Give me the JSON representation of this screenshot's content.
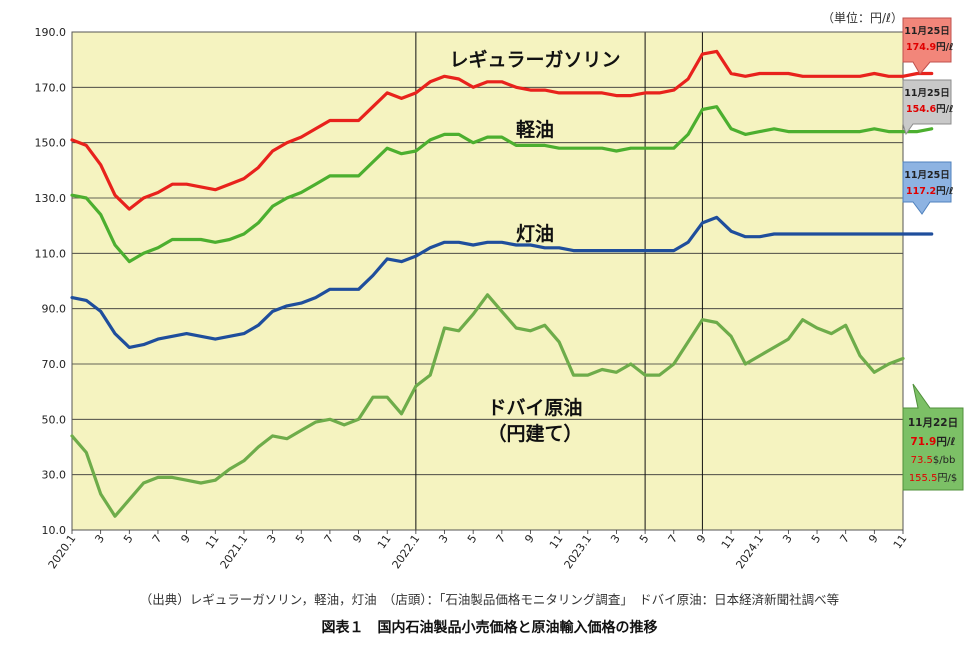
{
  "chart_data": {
    "type": "line",
    "unit_label": "（単位：円/ℓ）",
    "ylim": [
      10,
      190
    ],
    "yticks": [
      "10.0",
      "30.0",
      "50.0",
      "70.0",
      "90.0",
      "110.0",
      "130.0",
      "150.0",
      "170.0",
      "190.0"
    ],
    "xticks": [
      "2020.1",
      "3",
      "5",
      "7",
      "9",
      "11",
      "2021.1",
      "3",
      "5",
      "7",
      "9",
      "11",
      "2022.1",
      "3",
      "5",
      "7",
      "9",
      "11",
      "2023.1",
      "3",
      "5",
      "7",
      "9",
      "11",
      "2024.1",
      "3",
      "5",
      "7",
      "9",
      "11"
    ],
    "grid": "horizontal",
    "plot_background": "#f5f3c0",
    "vertical_lines_at_ticks": [
      "2022.1",
      "5",
      "9"
    ],
    "series": [
      {
        "name": "レギュラーガソリン",
        "color": "#e8221c",
        "values": [
          151,
          149,
          142,
          131,
          126,
          130,
          132,
          135,
          135,
          134,
          133,
          135,
          137,
          141,
          147,
          150,
          152,
          155,
          158,
          158,
          158,
          163,
          168,
          166,
          168,
          172,
          174,
          173,
          170,
          172,
          172,
          170,
          169,
          169,
          168,
          168,
          168,
          168,
          167,
          167,
          168,
          168,
          169,
          173,
          182,
          183,
          175,
          174,
          175,
          175,
          175,
          174,
          174,
          174,
          174,
          174,
          175,
          174,
          174,
          175,
          175
        ]
      },
      {
        "name": "軽油",
        "color": "#4caf2f",
        "values": [
          131,
          130,
          124,
          113,
          107,
          110,
          112,
          115,
          115,
          115,
          114,
          115,
          117,
          121,
          127,
          130,
          132,
          135,
          138,
          138,
          138,
          143,
          148,
          146,
          147,
          151,
          153,
          153,
          150,
          152,
          152,
          149,
          149,
          149,
          148,
          148,
          148,
          148,
          147,
          148,
          148,
          148,
          148,
          153,
          162,
          163,
          155,
          153,
          154,
          155,
          154,
          154,
          154,
          154,
          154,
          154,
          155,
          154,
          154,
          154,
          155
        ]
      },
      {
        "name": "灯油",
        "color": "#1f4e9c",
        "values": [
          94,
          93,
          89,
          81,
          76,
          77,
          79,
          80,
          81,
          80,
          79,
          80,
          81,
          84,
          89,
          91,
          92,
          94,
          97,
          97,
          97,
          102,
          108,
          107,
          109,
          112,
          114,
          114,
          113,
          114,
          114,
          113,
          113,
          112,
          112,
          111,
          111,
          111,
          111,
          111,
          111,
          111,
          111,
          114,
          121,
          123,
          118,
          116,
          116,
          117,
          117,
          117,
          117,
          117,
          117,
          117,
          117,
          117,
          117,
          117,
          117
        ]
      },
      {
        "name": "ドバイ原油（円建て）",
        "color": "#6eac4a",
        "values": [
          44,
          38,
          23,
          15,
          21,
          27,
          29,
          29,
          28,
          27,
          28,
          32,
          35,
          40,
          44,
          43,
          46,
          49,
          50,
          48,
          50,
          58,
          58,
          52,
          62,
          66,
          83,
          82,
          88,
          95,
          89,
          83,
          82,
          84,
          78,
          66,
          66,
          68,
          67,
          70,
          66,
          66,
          70,
          78,
          86,
          85,
          80,
          70,
          73,
          76,
          79,
          86,
          83,
          81,
          84,
          73,
          67,
          70,
          72
        ]
      }
    ],
    "series_labels": [
      "レギュラーガソリン",
      "軽油",
      "灯油",
      "ドバイ原油",
      "（円建て）"
    ],
    "callouts": [
      {
        "date": "11月25日",
        "value": "174.9",
        "unit": "円/ℓ",
        "color": "#f2867a"
      },
      {
        "date": "11月25日",
        "value": "154.6",
        "unit": "円/ℓ",
        "color": "#b7b7b7"
      },
      {
        "date": "11月25日",
        "value": "117.2",
        "unit": "円/ℓ",
        "color": "#7da7d9"
      },
      {
        "date": "11月22日",
        "value": "71.9",
        "unit": "円/ℓ",
        "extra": [
          {
            "value": "73.5",
            "unit": "$/bb"
          },
          {
            "value": "155.5",
            "unit": "円/$"
          }
        ],
        "color": "#6eb65a"
      }
    ]
  },
  "source_note": "（出典）レギュラーガソリン，軽油，灯油　（店頭）：「石油製品価格モニタリング調査」　ドバイ原油：日本経済新聞社調べ等",
  "figure_title": "図表１　国内石油製品小売価格と原油輸入価格の推移"
}
